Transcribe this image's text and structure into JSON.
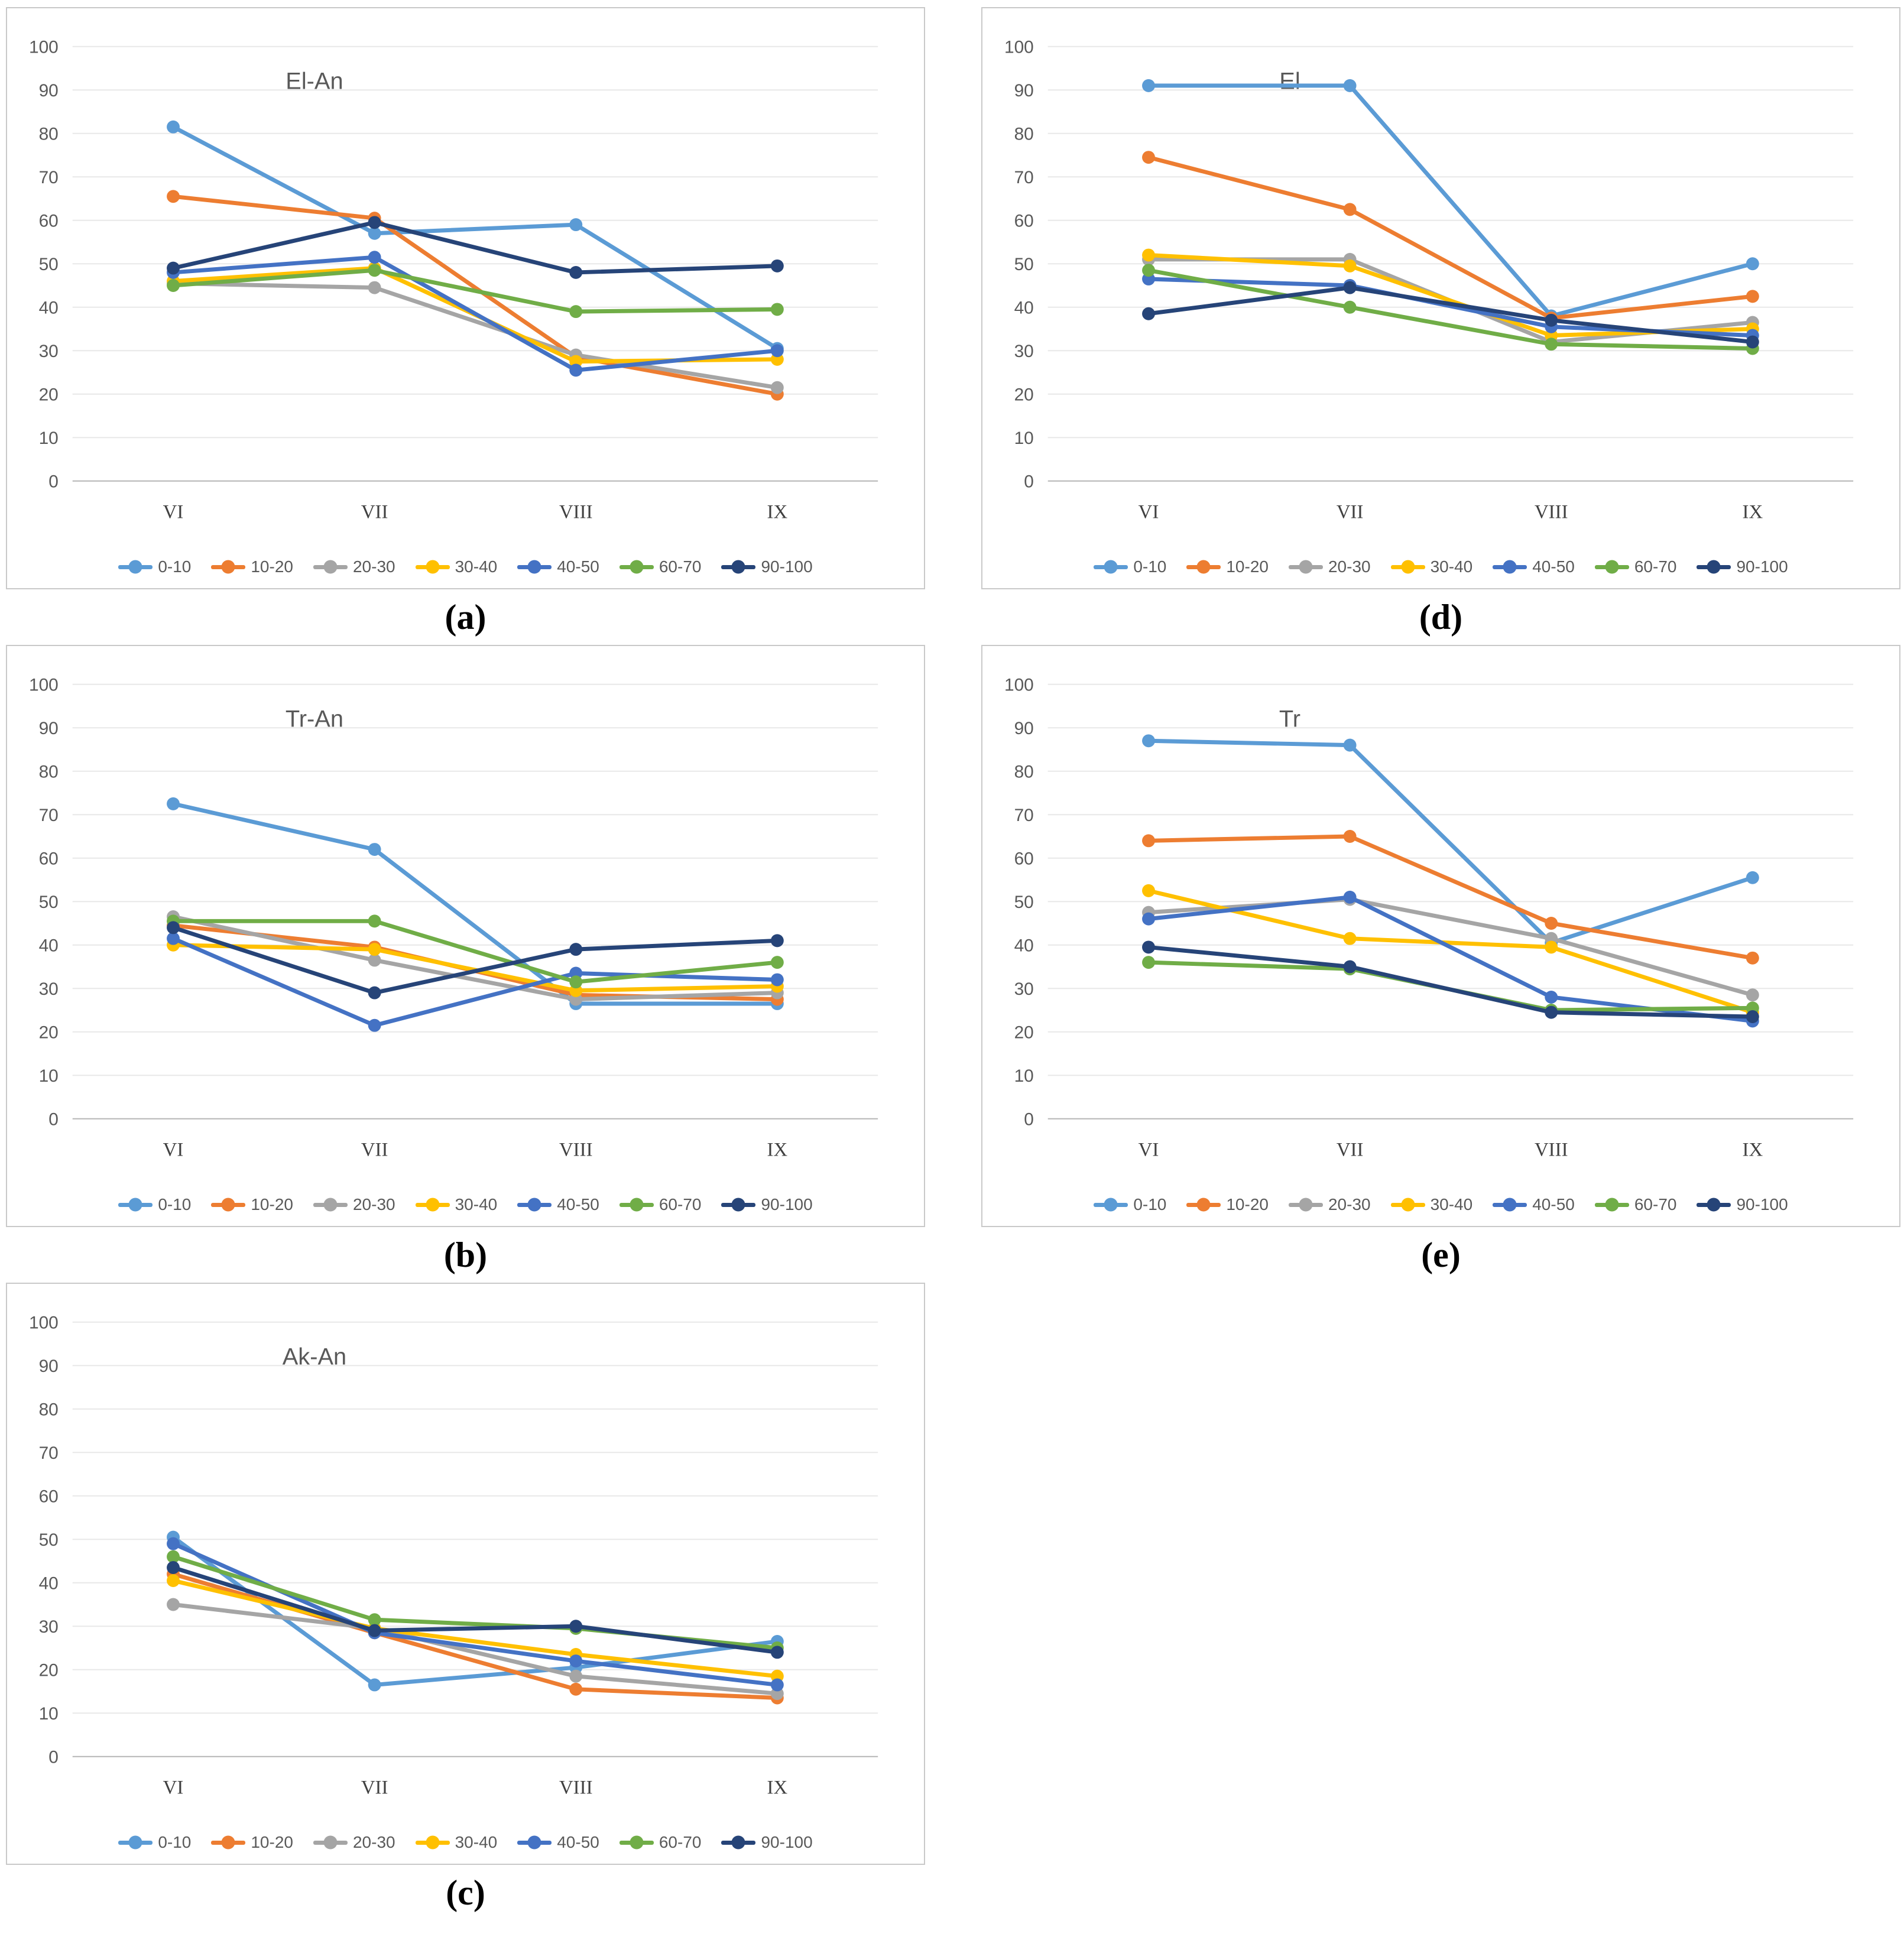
{
  "figure": {
    "x_categories": [
      "VI",
      "VII",
      "VIII",
      "IX"
    ],
    "legend_entries": [
      "0-10",
      "10-20",
      "20-30",
      "30-40",
      "40-50",
      "60-70",
      "90-100"
    ],
    "palette": {
      "0-10": "#5B9BD5",
      "10-20": "#ED7D31",
      "20-30": "#A5A5A5",
      "30-40": "#FFC000",
      "40-50": "#4472C4",
      "60-70": "#70AD47",
      "90-100": "#264478"
    },
    "grid_color": "#e8e8e8",
    "axis_color": "#b5b5b5",
    "text_color": "#595959"
  },
  "chart_data": [
    {
      "panel_label": "(a)",
      "type": "line",
      "title": "El-An",
      "categories": [
        "VI",
        "VII",
        "VIII",
        "IX"
      ],
      "ylim": [
        0,
        100
      ],
      "ytick_step": 10,
      "grid": true,
      "legend_position": "bottom",
      "series": [
        {
          "name": "0-10",
          "color": "#5B9BD5",
          "values": [
            81.5,
            57,
            59,
            30.5
          ]
        },
        {
          "name": "10-20",
          "color": "#ED7D31",
          "values": [
            65.5,
            60.5,
            28.5,
            20
          ]
        },
        {
          "name": "20-30",
          "color": "#A5A5A5",
          "values": [
            45.5,
            44.5,
            29,
            21.5
          ]
        },
        {
          "name": "30-40",
          "color": "#FFC000",
          "values": [
            46,
            49,
            27.5,
            28
          ]
        },
        {
          "name": "40-50",
          "color": "#4472C4",
          "values": [
            48,
            51.5,
            25.5,
            30
          ]
        },
        {
          "name": "60-70",
          "color": "#70AD47",
          "values": [
            45,
            48.5,
            39,
            39.5
          ]
        },
        {
          "name": "90-100",
          "color": "#264478",
          "values": [
            49,
            59.5,
            48,
            49.5
          ]
        }
      ]
    },
    {
      "panel_label": "(b)",
      "type": "line",
      "title": "Tr-An",
      "categories": [
        "VI",
        "VII",
        "VIII",
        "IX"
      ],
      "ylim": [
        0,
        100
      ],
      "ytick_step": 10,
      "grid": true,
      "legend_position": "bottom",
      "series": [
        {
          "name": "0-10",
          "color": "#5B9BD5",
          "values": [
            72.5,
            62,
            26.5,
            26.5
          ]
        },
        {
          "name": "10-20",
          "color": "#ED7D31",
          "values": [
            44.5,
            39.5,
            28.5,
            27.5
          ]
        },
        {
          "name": "20-30",
          "color": "#A5A5A5",
          "values": [
            46.5,
            36.5,
            27.5,
            29
          ]
        },
        {
          "name": "30-40",
          "color": "#FFC000",
          "values": [
            40,
            39,
            29.5,
            30.5
          ]
        },
        {
          "name": "40-50",
          "color": "#4472C4",
          "values": [
            41.5,
            21.5,
            33.5,
            32
          ]
        },
        {
          "name": "60-70",
          "color": "#70AD47",
          "values": [
            45.5,
            45.5,
            31.5,
            36
          ]
        },
        {
          "name": "90-100",
          "color": "#264478",
          "values": [
            44,
            29,
            39,
            41
          ]
        }
      ]
    },
    {
      "panel_label": "(c)",
      "type": "line",
      "title": "Ak-An",
      "categories": [
        "VI",
        "VII",
        "VIII",
        "IX"
      ],
      "ylim": [
        0,
        100
      ],
      "ytick_step": 10,
      "grid": true,
      "legend_position": "bottom",
      "series": [
        {
          "name": "0-10",
          "color": "#5B9BD5",
          "values": [
            50.5,
            16.5,
            20.5,
            26.5
          ]
        },
        {
          "name": "10-20",
          "color": "#ED7D31",
          "values": [
            42,
            28.5,
            15.5,
            13.5
          ]
        },
        {
          "name": "20-30",
          "color": "#A5A5A5",
          "values": [
            35,
            29.5,
            18.5,
            14.5
          ]
        },
        {
          "name": "30-40",
          "color": "#FFC000",
          "values": [
            40.5,
            29.5,
            23.5,
            18.5
          ]
        },
        {
          "name": "40-50",
          "color": "#4472C4",
          "values": [
            49,
            28.5,
            22,
            16.5
          ]
        },
        {
          "name": "60-70",
          "color": "#70AD47",
          "values": [
            46,
            31.5,
            29.5,
            25
          ]
        },
        {
          "name": "90-100",
          "color": "#264478",
          "values": [
            43.5,
            29,
            30,
            24
          ]
        }
      ]
    },
    {
      "panel_label": "(d)",
      "type": "line",
      "title": "El",
      "categories": [
        "VI",
        "VII",
        "VIII",
        "IX"
      ],
      "ylim": [
        0,
        100
      ],
      "ytick_step": 10,
      "grid": true,
      "legend_position": "bottom",
      "series": [
        {
          "name": "0-10",
          "color": "#5B9BD5",
          "values": [
            91,
            91,
            38,
            50
          ]
        },
        {
          "name": "10-20",
          "color": "#ED7D31",
          "values": [
            74.5,
            62.5,
            37.5,
            42.5
          ]
        },
        {
          "name": "20-30",
          "color": "#A5A5A5",
          "values": [
            51,
            51,
            32,
            36.5
          ]
        },
        {
          "name": "30-40",
          "color": "#FFC000",
          "values": [
            52,
            49.5,
            33.5,
            35
          ]
        },
        {
          "name": "40-50",
          "color": "#4472C4",
          "values": [
            46.5,
            45,
            35.5,
            33.5
          ]
        },
        {
          "name": "60-70",
          "color": "#70AD47",
          "values": [
            48.5,
            40,
            31.5,
            30.5
          ]
        },
        {
          "name": "90-100",
          "color": "#264478",
          "values": [
            38.5,
            44.5,
            37,
            32
          ]
        }
      ]
    },
    {
      "panel_label": "(e)",
      "type": "line",
      "title": "Tr",
      "categories": [
        "VI",
        "VII",
        "VIII",
        "IX"
      ],
      "ylim": [
        0,
        100
      ],
      "ytick_step": 10,
      "grid": true,
      "legend_position": "bottom",
      "series": [
        {
          "name": "0-10",
          "color": "#5B9BD5",
          "values": [
            87,
            86,
            40.5,
            55.5
          ]
        },
        {
          "name": "10-20",
          "color": "#ED7D31",
          "values": [
            64,
            65,
            45,
            37
          ]
        },
        {
          "name": "20-30",
          "color": "#A5A5A5",
          "values": [
            47.5,
            50.5,
            41.5,
            28.5
          ]
        },
        {
          "name": "30-40",
          "color": "#FFC000",
          "values": [
            52.5,
            41.5,
            39.5,
            24.5
          ]
        },
        {
          "name": "40-50",
          "color": "#4472C4",
          "values": [
            46,
            51,
            28,
            22.5
          ]
        },
        {
          "name": "60-70",
          "color": "#70AD47",
          "values": [
            36,
            34.5,
            25,
            25.5
          ]
        },
        {
          "name": "90-100",
          "color": "#264478",
          "values": [
            39.5,
            35,
            24.5,
            23.5
          ]
        }
      ]
    }
  ]
}
